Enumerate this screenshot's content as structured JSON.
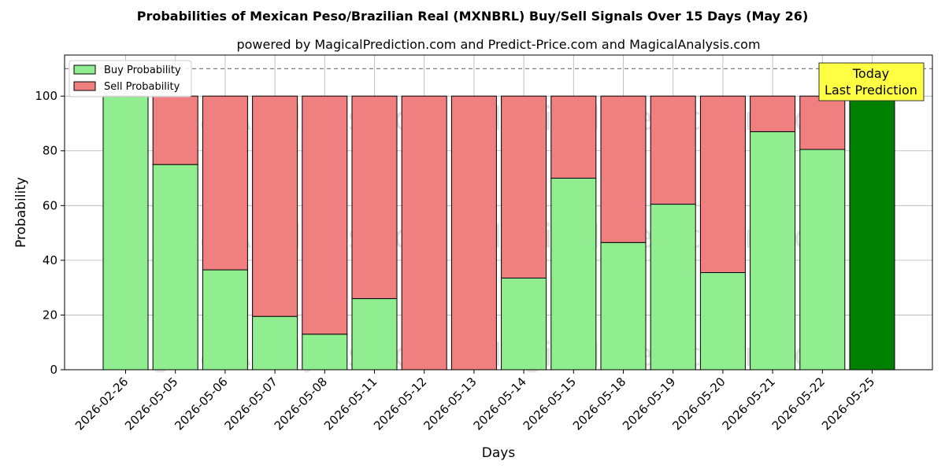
{
  "chart_data": {
    "type": "bar",
    "title": "Probabilities of Mexican Peso/Brazilian Real (MXNBRL) Buy/Sell Signals Over 15 Days (May 26)",
    "subtitle": "powered by MagicalPrediction.com and Predict-Price.com and MagicalAnalysis.com",
    "xlabel": "Days",
    "ylabel": "Probability",
    "ylim": [
      0,
      115
    ],
    "yticks": [
      0,
      20,
      40,
      60,
      80,
      100
    ],
    "reference_line": 110,
    "grid": true,
    "stacked": true,
    "legend_position": "top-left",
    "categories": [
      "2026-02-26",
      "2026-05-05",
      "2026-05-06",
      "2026-05-07",
      "2026-05-08",
      "2026-05-11",
      "2026-05-12",
      "2026-05-13",
      "2026-05-14",
      "2026-05-15",
      "2026-05-18",
      "2026-05-19",
      "2026-05-20",
      "2026-05-21",
      "2026-05-22",
      "2026-05-25"
    ],
    "series": [
      {
        "name": "Buy Probability",
        "color": "#90ee90",
        "values": [
          100,
          75,
          36.5,
          19.5,
          13,
          26,
          0,
          0,
          33.5,
          70,
          46.5,
          60.5,
          35.5,
          87,
          80.5,
          100
        ]
      },
      {
        "name": "Sell Probability",
        "color": "#f08080",
        "values": [
          0,
          25,
          63.5,
          80.5,
          87,
          74,
          100,
          100,
          66.5,
          30,
          53.5,
          39.5,
          64.5,
          13,
          19.5,
          0
        ]
      }
    ],
    "highlight": {
      "index": 15,
      "color": "#008000"
    },
    "annotation": {
      "lines": [
        "Today",
        "Last Prediction"
      ],
      "background": "#ffff44"
    },
    "watermarks": [
      "MagicalAnalysis.com",
      "MagicalPrediction.com"
    ]
  }
}
